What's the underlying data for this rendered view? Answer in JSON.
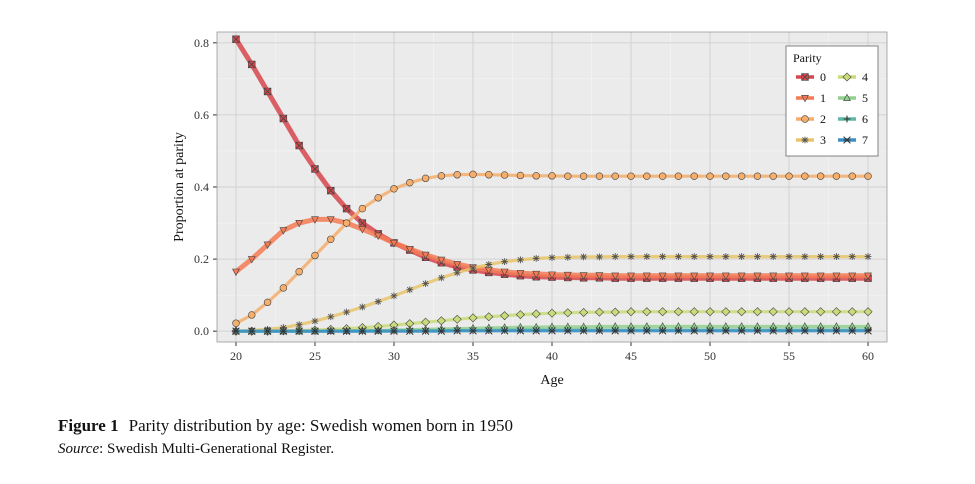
{
  "caption": {
    "figure_label": "Figure 1",
    "text": "Parity distribution by age: Swedish women born in 1950",
    "source_label": "Source",
    "source_text": ": Swedish Multi-Generational Register."
  },
  "chart_data": {
    "type": "line",
    "title": "",
    "xlabel": "Age",
    "ylabel": "Proportion at parity",
    "xlim": [
      18.8,
      61.2
    ],
    "ylim": [
      -0.03,
      0.83
    ],
    "xticks": [
      20,
      25,
      30,
      35,
      40,
      45,
      50,
      55,
      60
    ],
    "yticks": [
      0.0,
      0.2,
      0.4,
      0.6,
      0.8
    ],
    "ytick_labels": [
      "0.0",
      "0.2",
      "0.4",
      "0.6",
      "0.8"
    ],
    "grid": true,
    "legend": {
      "title": "Parity",
      "placement": "top-right"
    },
    "x": [
      20,
      21,
      22,
      23,
      24,
      25,
      26,
      27,
      28,
      29,
      30,
      31,
      32,
      33,
      34,
      35,
      36,
      37,
      38,
      39,
      40,
      41,
      42,
      43,
      44,
      45,
      46,
      47,
      48,
      49,
      50,
      51,
      52,
      53,
      54,
      55,
      56,
      57,
      58,
      59,
      60
    ],
    "series": [
      {
        "name": "0",
        "color": "#d7474d",
        "marker": "x-square",
        "values": [
          0.81,
          0.74,
          0.665,
          0.59,
          0.515,
          0.45,
          0.39,
          0.34,
          0.3,
          0.27,
          0.245,
          0.225,
          0.205,
          0.19,
          0.178,
          0.17,
          0.163,
          0.158,
          0.154,
          0.151,
          0.15,
          0.149,
          0.148,
          0.148,
          0.147,
          0.147,
          0.147,
          0.147,
          0.147,
          0.147,
          0.147,
          0.147,
          0.147,
          0.147,
          0.147,
          0.147,
          0.147,
          0.147,
          0.147,
          0.147,
          0.147
        ]
      },
      {
        "name": "1",
        "color": "#f47b55",
        "marker": "triangle-down",
        "values": [
          0.165,
          0.2,
          0.24,
          0.28,
          0.3,
          0.31,
          0.31,
          0.3,
          0.283,
          0.265,
          0.245,
          0.228,
          0.212,
          0.198,
          0.186,
          0.177,
          0.17,
          0.165,
          0.161,
          0.159,
          0.157,
          0.156,
          0.155,
          0.155,
          0.154,
          0.154,
          0.154,
          0.154,
          0.154,
          0.154,
          0.154,
          0.154,
          0.154,
          0.154,
          0.154,
          0.154,
          0.154,
          0.154,
          0.154,
          0.154,
          0.154
        ]
      },
      {
        "name": "2",
        "color": "#f5ae6b",
        "marker": "circle",
        "values": [
          0.022,
          0.045,
          0.08,
          0.12,
          0.165,
          0.21,
          0.255,
          0.3,
          0.34,
          0.37,
          0.395,
          0.412,
          0.424,
          0.431,
          0.434,
          0.435,
          0.434,
          0.433,
          0.432,
          0.431,
          0.431,
          0.43,
          0.43,
          0.43,
          0.43,
          0.43,
          0.43,
          0.43,
          0.43,
          0.43,
          0.43,
          0.43,
          0.43,
          0.43,
          0.43,
          0.43,
          0.43,
          0.43,
          0.43,
          0.43,
          0.43
        ]
      },
      {
        "name": "3",
        "color": "#e8c56b",
        "marker": "asterisk",
        "values": [
          0.0,
          0.002,
          0.005,
          0.01,
          0.018,
          0.028,
          0.04,
          0.053,
          0.067,
          0.082,
          0.098,
          0.115,
          0.132,
          0.148,
          0.162,
          0.175,
          0.185,
          0.193,
          0.198,
          0.202,
          0.204,
          0.205,
          0.206,
          0.206,
          0.207,
          0.207,
          0.207,
          0.207,
          0.207,
          0.207,
          0.207,
          0.207,
          0.207,
          0.207,
          0.207,
          0.207,
          0.207,
          0.207,
          0.207,
          0.207,
          0.207
        ]
      },
      {
        "name": "4",
        "color": "#c9dc7c",
        "marker": "diamond",
        "values": [
          0.0,
          0.0,
          0.0,
          0.001,
          0.002,
          0.003,
          0.005,
          0.007,
          0.01,
          0.013,
          0.017,
          0.021,
          0.025,
          0.029,
          0.033,
          0.037,
          0.04,
          0.043,
          0.046,
          0.048,
          0.05,
          0.051,
          0.052,
          0.053,
          0.053,
          0.054,
          0.054,
          0.054,
          0.054,
          0.054,
          0.054,
          0.054,
          0.054,
          0.054,
          0.054,
          0.054,
          0.054,
          0.054,
          0.054,
          0.054,
          0.054
        ]
      },
      {
        "name": "5",
        "color": "#93cf8f",
        "marker": "triangle-up",
        "values": [
          0.0,
          0.0,
          0.0,
          0.0,
          0.0,
          0.0,
          0.001,
          0.001,
          0.002,
          0.002,
          0.003,
          0.004,
          0.005,
          0.006,
          0.007,
          0.008,
          0.009,
          0.01,
          0.011,
          0.011,
          0.012,
          0.012,
          0.012,
          0.013,
          0.013,
          0.013,
          0.013,
          0.013,
          0.013,
          0.013,
          0.013,
          0.013,
          0.013,
          0.013,
          0.013,
          0.013,
          0.013,
          0.013,
          0.013,
          0.013,
          0.013
        ]
      },
      {
        "name": "6",
        "color": "#5fb8a6",
        "marker": "plus",
        "values": [
          0.0,
          0.0,
          0.0,
          0.0,
          0.0,
          0.0,
          0.0,
          0.0,
          0.0,
          0.001,
          0.001,
          0.001,
          0.001,
          0.002,
          0.002,
          0.002,
          0.002,
          0.003,
          0.003,
          0.003,
          0.003,
          0.003,
          0.003,
          0.003,
          0.003,
          0.003,
          0.003,
          0.003,
          0.003,
          0.003,
          0.003,
          0.003,
          0.003,
          0.003,
          0.003,
          0.003,
          0.003,
          0.003,
          0.003,
          0.003,
          0.003
        ]
      },
      {
        "name": "7",
        "color": "#3d8fc4",
        "marker": "x-star",
        "values": [
          0.0,
          0.0,
          0.0,
          0.0,
          0.0,
          0.0,
          0.0,
          0.0,
          0.0,
          0.0,
          0.0,
          0.0,
          0.0,
          0.0,
          0.001,
          0.001,
          0.001,
          0.001,
          0.001,
          0.001,
          0.001,
          0.001,
          0.001,
          0.001,
          0.001,
          0.001,
          0.001,
          0.001,
          0.001,
          0.001,
          0.001,
          0.001,
          0.001,
          0.001,
          0.001,
          0.001,
          0.001,
          0.001,
          0.001,
          0.001,
          0.001
        ]
      }
    ]
  }
}
